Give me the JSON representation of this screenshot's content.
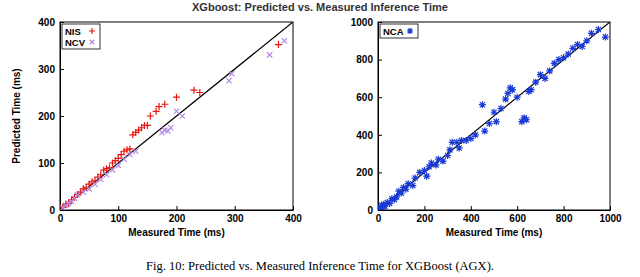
{
  "title": "XGboost: Predicted vs. Measured Inference Time",
  "caption": "Fig. 10: Predicted vs. Measured Inference Time for XGBoost (AGX).",
  "chart_data": [
    {
      "type": "scatter",
      "x_label": "Measured Time (ms)",
      "y_label": "Predicted Time (ms)",
      "xlim": [
        0,
        400
      ],
      "ylim": [
        0,
        400
      ],
      "xticks": [
        0,
        100,
        200,
        300,
        400
      ],
      "yticks": [
        0,
        100,
        200,
        300,
        400
      ],
      "legend": "top-left",
      "series": [
        {
          "name": "NIS",
          "color": "#e8160c",
          "marker": "plus",
          "x": [
            5,
            10,
            15,
            20,
            25,
            30,
            35,
            40,
            45,
            50,
            55,
            60,
            65,
            70,
            75,
            80,
            85,
            90,
            95,
            100,
            105,
            110,
            115,
            120,
            125,
            130,
            135,
            140,
            145,
            150,
            155,
            165,
            170,
            180,
            200,
            230,
            240,
            375
          ],
          "values": [
            6,
            12,
            14,
            22,
            27,
            33,
            38,
            45,
            48,
            55,
            60,
            62,
            70,
            75,
            85,
            88,
            90,
            100,
            105,
            110,
            118,
            125,
            128,
            130,
            160,
            165,
            170,
            175,
            180,
            180,
            200,
            210,
            220,
            225,
            240,
            255,
            250,
            352
          ]
        },
        {
          "name": "NCV",
          "color": "#b48ae6",
          "marker": "cross",
          "x": [
            5,
            10,
            15,
            20,
            25,
            30,
            40,
            50,
            60,
            70,
            80,
            90,
            100,
            110,
            120,
            130,
            175,
            180,
            185,
            190,
            200,
            210,
            290,
            295,
            360,
            385
          ],
          "values": [
            5,
            10,
            14,
            18,
            25,
            32,
            38,
            45,
            55,
            65,
            75,
            85,
            95,
            108,
            118,
            125,
            165,
            170,
            168,
            175,
            210,
            200,
            275,
            290,
            330,
            360
          ]
        }
      ]
    },
    {
      "type": "scatter",
      "x_label": "Measured Time (ms)",
      "xlim": [
        0,
        1000
      ],
      "ylim": [
        0,
        1000
      ],
      "xticks": [
        0,
        200,
        400,
        600,
        800,
        1000
      ],
      "yticks": [
        0,
        200,
        400,
        600,
        800,
        1000
      ],
      "legend": "top-left",
      "series": [
        {
          "name": "NCA",
          "color": "#1a3ad6",
          "marker": "asterisk",
          "x": [
            10,
            15,
            20,
            25,
            30,
            40,
            50,
            60,
            70,
            80,
            90,
            100,
            110,
            120,
            130,
            150,
            160,
            180,
            200,
            210,
            220,
            230,
            250,
            260,
            280,
            300,
            310,
            320,
            340,
            350,
            360,
            380,
            400,
            420,
            450,
            460,
            480,
            500,
            510,
            530,
            550,
            560,
            570,
            580,
            600,
            620,
            630,
            640,
            650,
            660,
            680,
            700,
            720,
            740,
            760,
            780,
            800,
            820,
            840,
            860,
            880,
            900,
            920,
            950,
            980
          ],
          "values": [
            15,
            25,
            10,
            30,
            20,
            40,
            35,
            60,
            55,
            70,
            100,
            90,
            120,
            110,
            140,
            130,
            170,
            200,
            210,
            180,
            230,
            250,
            240,
            270,
            260,
            290,
            320,
            360,
            360,
            330,
            370,
            370,
            380,
            400,
            560,
            420,
            460,
            520,
            470,
            540,
            590,
            620,
            650,
            640,
            600,
            470,
            490,
            480,
            630,
            640,
            680,
            720,
            700,
            740,
            780,
            800,
            810,
            830,
            860,
            880,
            870,
            900,
            940,
            960,
            920
          ]
        }
      ]
    }
  ]
}
